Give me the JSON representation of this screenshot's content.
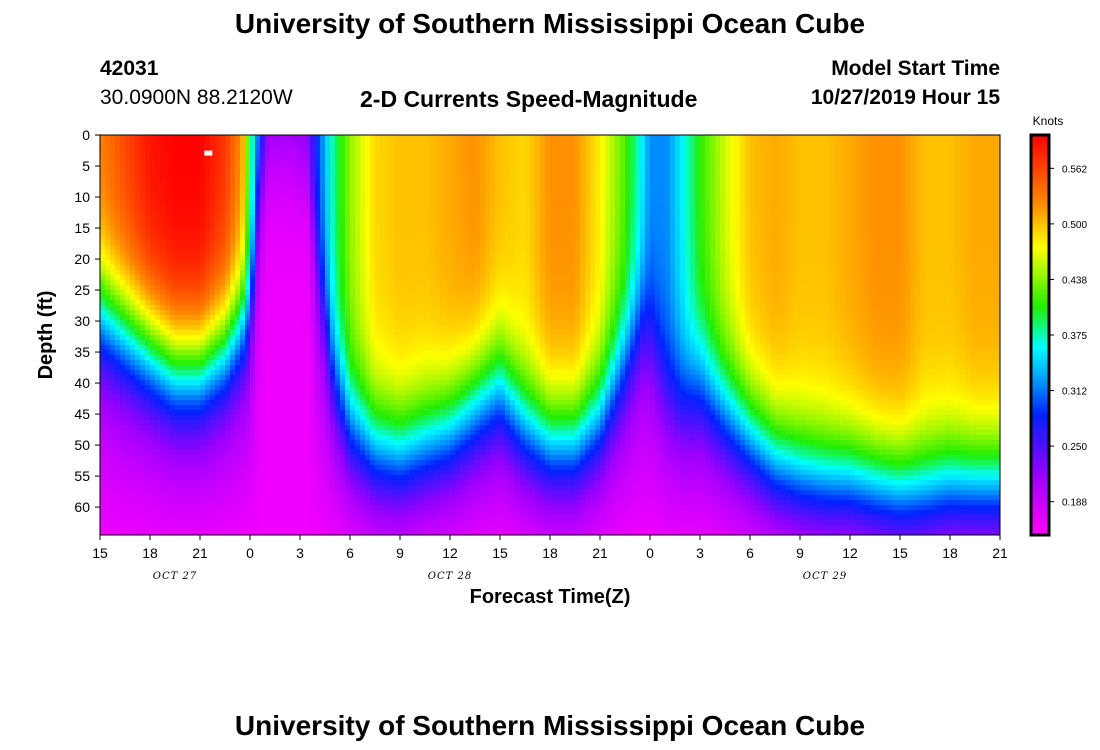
{
  "page": {
    "title_top": "University of Southern Mississippi Ocean Cube",
    "title_bottom": "University of Southern Mississippi Ocean Cube"
  },
  "header": {
    "station_id": "42031",
    "location": "30.0900N 88.2120W",
    "plot_title": "2-D Currents Speed-Magnitude",
    "model_start_label": "Model Start Time",
    "model_start_value": "10/27/2019 Hour 15"
  },
  "chart_data": {
    "type": "heatmap",
    "title": "2-D Currents Speed-Magnitude",
    "xlabel": "Forecast Time(Z)",
    "ylabel": "Depth (ft)",
    "x_hours_range": [
      0,
      54
    ],
    "x_tick_labels": [
      "15",
      "18",
      "21",
      "0",
      "3",
      "6",
      "9",
      "12",
      "15",
      "18",
      "21",
      "0",
      "3",
      "6",
      "9",
      "12",
      "15",
      "18",
      "21"
    ],
    "date_labels": [
      {
        "text": "OCT 27",
        "hour": 4.5
      },
      {
        "text": "OCT 28",
        "hour": 21
      },
      {
        "text": "OCT 29",
        "hour": 43.5
      }
    ],
    "y_ticks": [
      0,
      5,
      10,
      15,
      20,
      25,
      30,
      35,
      40,
      45,
      50,
      55,
      60
    ],
    "ylim": [
      0,
      64.5
    ],
    "colorbar": {
      "label": "Knots",
      "range": [
        0.15,
        0.6
      ],
      "ticks": [
        "0.562",
        "0.500",
        "0.438",
        "0.375",
        "0.312",
        "0.250",
        "0.188"
      ],
      "tick_values": [
        0.5625,
        0.5,
        0.4375,
        0.375,
        0.3125,
        0.25,
        0.1875
      ]
    },
    "profile": {
      "hours": [
        0,
        1.5,
        3,
        4.5,
        6,
        7.5,
        8.5,
        9,
        9.5,
        10,
        10.5,
        11.5,
        12.5,
        13,
        14,
        15,
        16.5,
        18,
        19.5,
        21,
        22.5,
        24,
        25.5,
        27,
        28.5,
        30,
        31.5,
        32.5,
        33,
        34,
        35,
        36,
        37.5,
        39,
        40.5,
        42,
        43.5,
        45,
        46.5,
        48,
        49.5,
        51,
        52.5,
        54
      ],
      "surface_knots": [
        0.53,
        0.56,
        0.59,
        0.6,
        0.6,
        0.57,
        0.52,
        0.4,
        0.32,
        0.26,
        0.24,
        0.24,
        0.25,
        0.29,
        0.38,
        0.44,
        0.49,
        0.5,
        0.5,
        0.51,
        0.52,
        0.5,
        0.49,
        0.52,
        0.52,
        0.48,
        0.42,
        0.36,
        0.32,
        0.32,
        0.36,
        0.41,
        0.46,
        0.5,
        0.51,
        0.5,
        0.5,
        0.51,
        0.52,
        0.52,
        0.5,
        0.5,
        0.51,
        0.51
      ],
      "decay_depth_ft": [
        28,
        31,
        34,
        37,
        37,
        34,
        30,
        28,
        12,
        3,
        2,
        2,
        5,
        20,
        38,
        46,
        50,
        51,
        49,
        47,
        43,
        40,
        46,
        49,
        49,
        45,
        36,
        30,
        31,
        40,
        42,
        40,
        44,
        48,
        52,
        54,
        55,
        55,
        56,
        57,
        57,
        56,
        56,
        56
      ]
    },
    "marker": {
      "hour": 6.5,
      "depth_ft": 3
    }
  }
}
